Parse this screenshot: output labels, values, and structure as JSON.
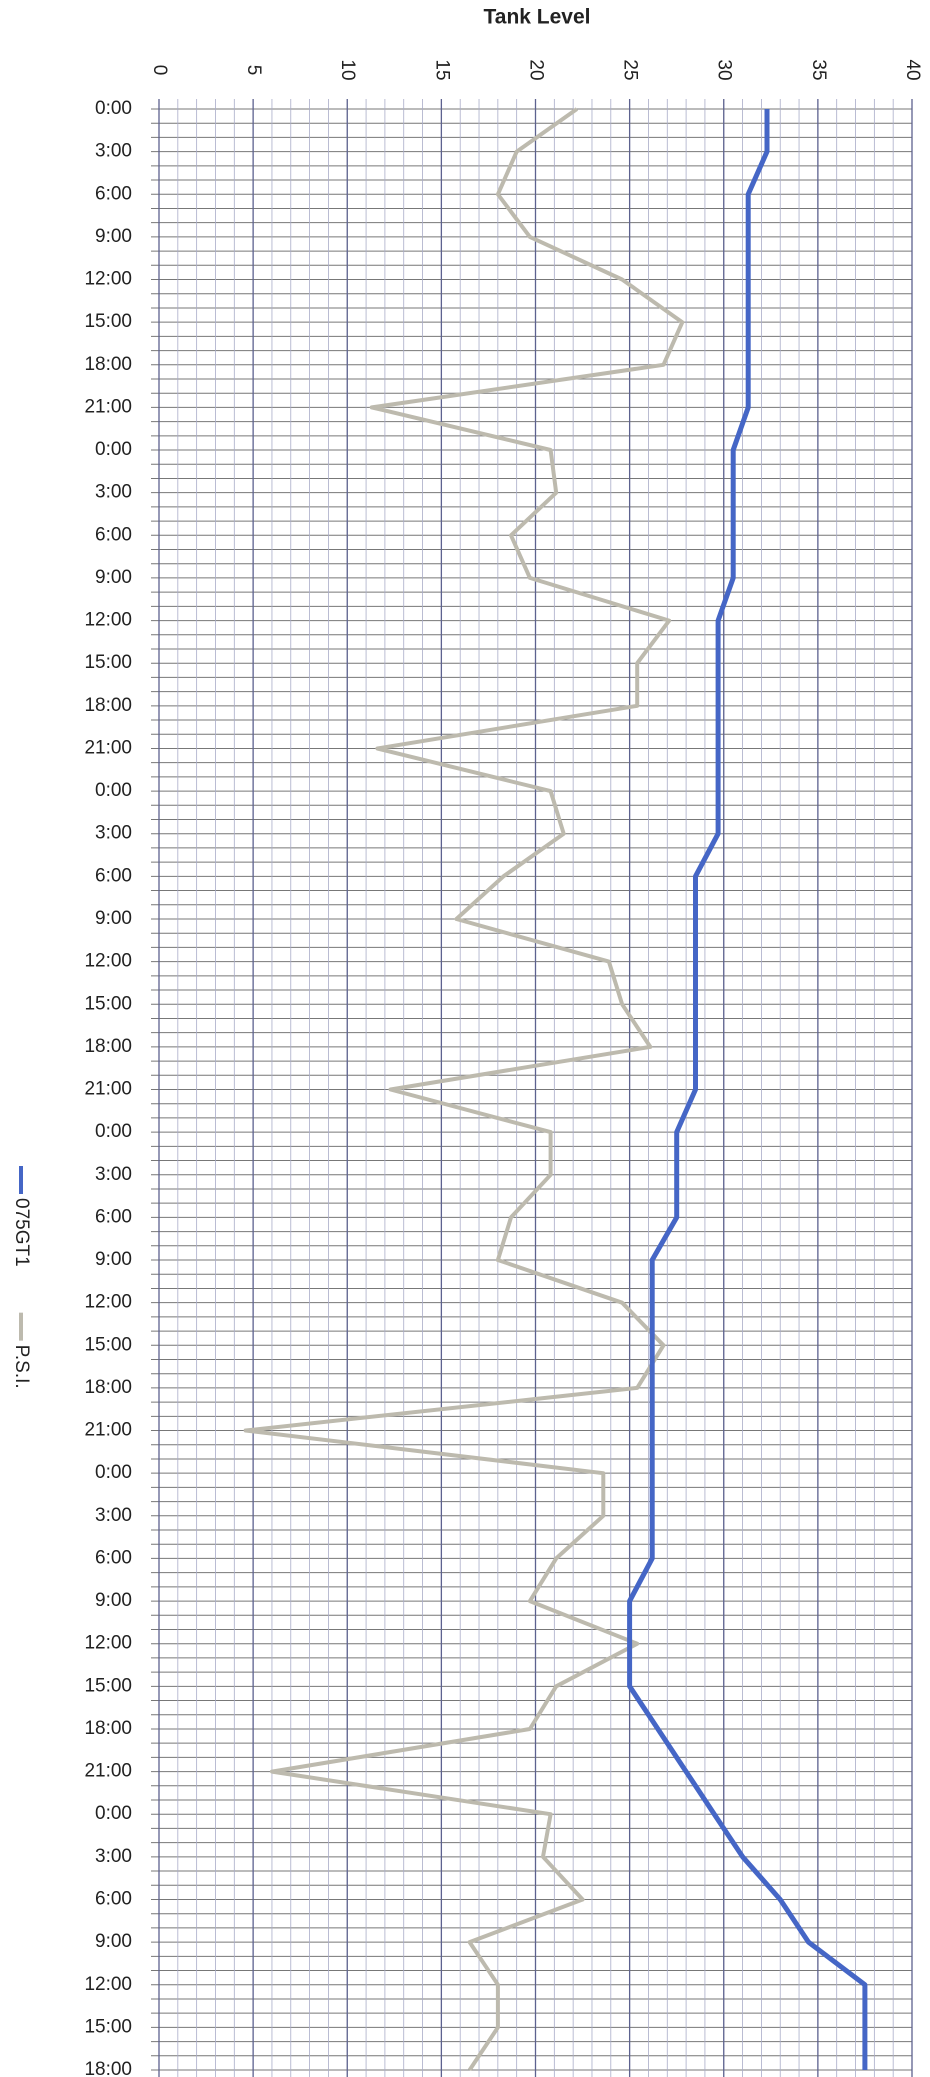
{
  "chart_data": {
    "type": "line",
    "title": "Tank Level",
    "orientation": "horizontal-values",
    "categories": [
      "0:00",
      "3:00",
      "6:00",
      "9:00",
      "12:00",
      "15:00",
      "18:00",
      "21:00",
      "0:00",
      "3:00",
      "6:00",
      "9:00",
      "12:00",
      "15:00",
      "18:00",
      "21:00",
      "0:00",
      "3:00",
      "6:00",
      "9:00",
      "12:00",
      "15:00",
      "18:00",
      "21:00",
      "0:00",
      "3:00",
      "6:00",
      "9:00",
      "12:00",
      "15:00",
      "18:00",
      "21:00",
      "0:00",
      "3:00",
      "6:00",
      "9:00",
      "12:00",
      "15:00",
      "18:00",
      "21:00",
      "0:00",
      "3:00",
      "6:00",
      "9:00",
      "12:00",
      "15:00",
      "18:00"
    ],
    "series": [
      {
        "name": "075GT1",
        "color": "#4566c6",
        "values": [
          32.3,
          32.3,
          31.3,
          31.3,
          31.3,
          31.3,
          31.3,
          31.3,
          30.5,
          30.5,
          30.5,
          30.5,
          29.7,
          29.7,
          29.7,
          29.7,
          29.7,
          29.7,
          28.5,
          28.5,
          28.5,
          28.5,
          28.5,
          28.5,
          27.5,
          27.5,
          27.5,
          26.2,
          26.2,
          26.2,
          26.2,
          26.2,
          26.2,
          26.2,
          26.2,
          25.0,
          25.0,
          25.0,
          26.5,
          28.0,
          29.5,
          31.0,
          33.0,
          34.5,
          37.5,
          37.5,
          37.5
        ]
      },
      {
        "name": "P.S.I.",
        "color": "#bdbaae",
        "values": [
          22.2,
          19.0,
          18.0,
          19.7,
          24.6,
          27.8,
          26.8,
          11.3,
          20.8,
          21.1,
          18.7,
          19.7,
          27.1,
          25.4,
          25.4,
          11.6,
          20.8,
          21.5,
          18.3,
          15.8,
          23.9,
          24.6,
          26.1,
          12.3,
          20.8,
          20.8,
          18.7,
          18.0,
          24.6,
          26.8,
          25.4,
          4.6,
          23.6,
          23.6,
          21.1,
          19.7,
          25.4,
          21.1,
          19.7,
          6.0,
          20.8,
          20.4,
          22.5,
          16.5,
          18.0,
          18.0,
          16.5
        ]
      }
    ],
    "ylim": [
      0,
      40
    ],
    "yticks": [
      0,
      5,
      10,
      15,
      20,
      25,
      30,
      35,
      40
    ],
    "grid": true,
    "legend": "left"
  }
}
